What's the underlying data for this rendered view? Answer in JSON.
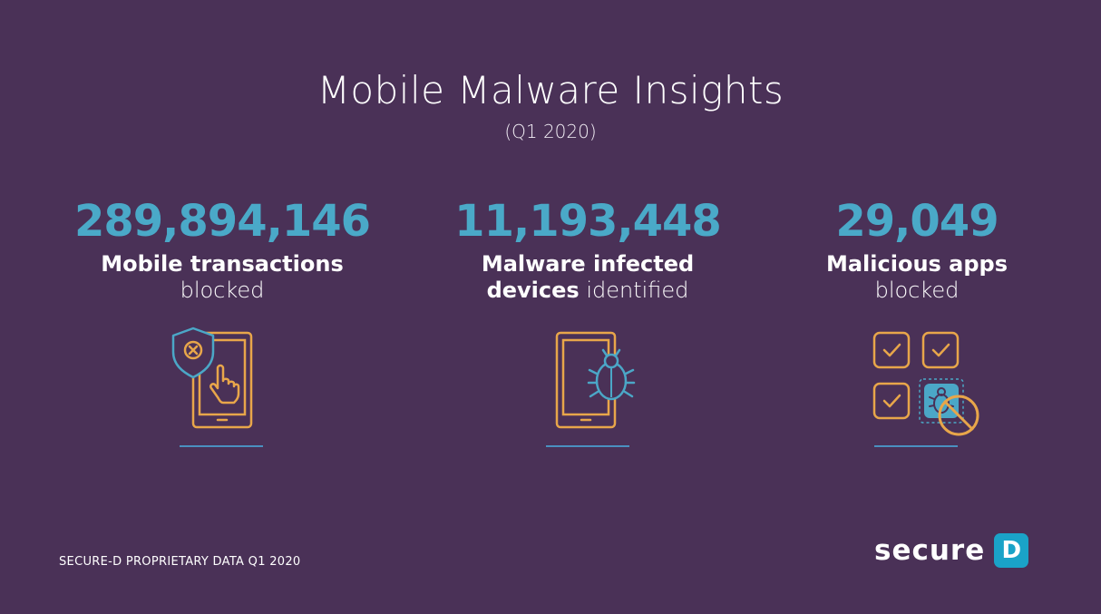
{
  "header": {
    "title": "Mobile Malware Insights",
    "subtitle": "(Q1 2020)"
  },
  "stats": [
    {
      "value": "289,894,146",
      "label_bold": "Mobile transactions",
      "label_light": "blocked",
      "icon": "shield-tablet-hand-icon"
    },
    {
      "value": "11,193,448",
      "label_bold": "Malware infected",
      "label_bold_2": "devices",
      "label_light": "identified",
      "icon": "tablet-bug-icon"
    },
    {
      "value": "29,049",
      "label_bold": "Malicious apps",
      "label_light": "blocked",
      "icon": "apps-bug-blocked-icon"
    }
  ],
  "footer": {
    "note": "SECURE-D PROPRIETARY DATA Q1 2020"
  },
  "logo": {
    "word": "secure",
    "badge_letter": "D"
  },
  "colors": {
    "background": "#4a3157",
    "accent": "#4aa9c8",
    "icon_stroke": "#e8a64a",
    "icon_blue": "#4ba7c7",
    "logo_badge": "#1aa3c8"
  }
}
